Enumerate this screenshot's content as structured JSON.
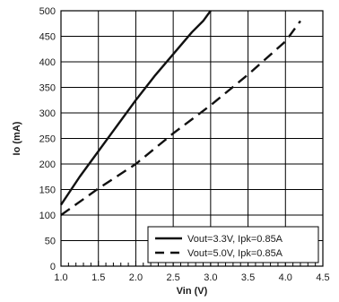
{
  "chart_data": {
    "type": "line",
    "title": "",
    "xlabel": "Vin (V)",
    "ylabel": "Io (mA)",
    "xlim": [
      1.0,
      4.5
    ],
    "ylim": [
      0,
      500
    ],
    "xticks": [
      "1.0",
      "1.5",
      "2.0",
      "2.5",
      "3.0",
      "3.5",
      "4.0",
      "4.5"
    ],
    "yticks": [
      "0",
      "50",
      "100",
      "150",
      "200",
      "250",
      "300",
      "350",
      "400",
      "450",
      "500"
    ],
    "grid": true,
    "legend_position": "bottom-right",
    "series": [
      {
        "name": "Vout=3.3V, Ipk=0.85A",
        "style": "solid",
        "color": "#111111",
        "x": [
          1.0,
          1.25,
          1.5,
          1.75,
          2.0,
          2.25,
          2.5,
          2.75,
          2.9,
          3.0
        ],
        "y": [
          120,
          175,
          225,
          275,
          325,
          372,
          415,
          458,
          480,
          500
        ]
      },
      {
        "name": "Vout=5.0V, Ipk=0.85A",
        "style": "dashed",
        "color": "#111111",
        "x": [
          1.0,
          1.5,
          2.0,
          2.5,
          3.0,
          3.5,
          4.0,
          4.2
        ],
        "y": [
          100,
          152,
          200,
          260,
          315,
          375,
          440,
          480
        ]
      }
    ]
  }
}
